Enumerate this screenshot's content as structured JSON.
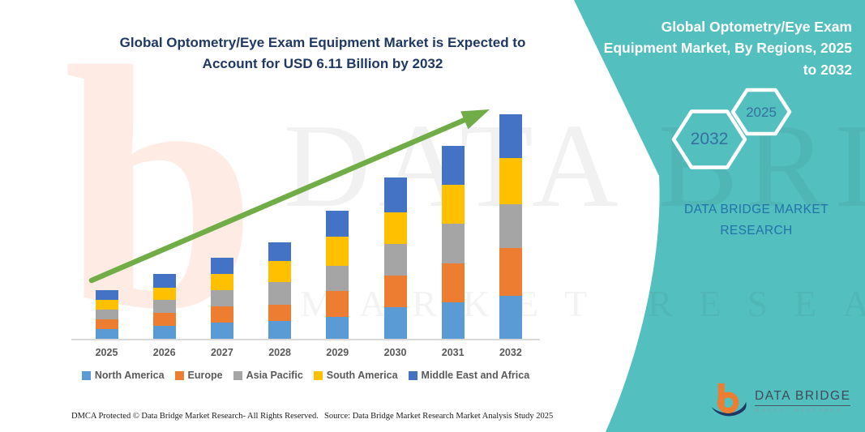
{
  "colors": {
    "teal_panel": "#53BFBF",
    "title_text": "#1F3864",
    "axis_label": "#595959",
    "arrow": "#70AD47",
    "baseline": "#D9D9D9",
    "hexagon_year_text": "#35719F",
    "brand_text": "#2173A8"
  },
  "chart": {
    "title_lines": [
      "Global Optometry/Eye Exam Equipment Market is Expected to",
      "Account for USD 6.11 Billion by 2032"
    ]
  },
  "chart_data": {
    "type": "bar",
    "stacked": true,
    "title": "Global Optometry/Eye Exam Equipment Market is Expected to Account for USD 6.11 Billion by 2032",
    "unit": "USD Billion",
    "categories": [
      "2025",
      "2026",
      "2027",
      "2028",
      "2029",
      "2030",
      "2031",
      "2032"
    ],
    "series": [
      {
        "name": "North America",
        "color": "#5B9BD5",
        "values": [
          0.26,
          0.35,
          0.44,
          0.48,
          0.6,
          0.85,
          1.0,
          1.17
        ]
      },
      {
        "name": "Europe",
        "color": "#ED7D31",
        "values": [
          0.26,
          0.35,
          0.44,
          0.44,
          0.71,
          0.86,
          1.05,
          1.3
        ]
      },
      {
        "name": "Asia Pacific",
        "color": "#A5A5A5",
        "values": [
          0.27,
          0.35,
          0.44,
          0.63,
          0.68,
          0.86,
          1.08,
          1.19
        ]
      },
      {
        "name": "South America",
        "color": "#FFC000",
        "values": [
          0.26,
          0.35,
          0.44,
          0.57,
          0.79,
          0.88,
          1.06,
          1.25
        ]
      },
      {
        "name": "Middle East and Africa",
        "color": "#4472C4",
        "values": [
          0.27,
          0.36,
          0.44,
          0.5,
          0.7,
          0.94,
          1.07,
          1.2
        ]
      }
    ],
    "totals": [
      1.32,
      1.76,
      2.2,
      2.62,
      3.48,
      4.39,
      5.26,
      6.11
    ],
    "ylim": [
      0,
      6.11
    ],
    "gridlines": false,
    "legend_position": "bottom",
    "trend_arrow": true
  },
  "right_panel": {
    "title_lines": [
      "Global Optometry/Eye Exam",
      "Equipment Market, By Regions, 2025",
      "to 2032"
    ],
    "hexagons": [
      {
        "year": "2032"
      },
      {
        "year": "2025"
      }
    ],
    "brand_lines": [
      "DATA BRIDGE MARKET",
      "RESEARCH"
    ]
  },
  "logo": {
    "name": "DATA BRIDGE",
    "tagline": "MARKET RESEARCH"
  },
  "watermark": {
    "letter": "b",
    "text_large": "DATA BRIDGE",
    "text_small": "MARKET RESEARCH"
  },
  "footer": {
    "left": "DMCA Protected © Data Bridge Market Research-  All Rights Reserved.",
    "right": "Source: Data Bridge Market Research  Market Analysis Study 2025"
  }
}
